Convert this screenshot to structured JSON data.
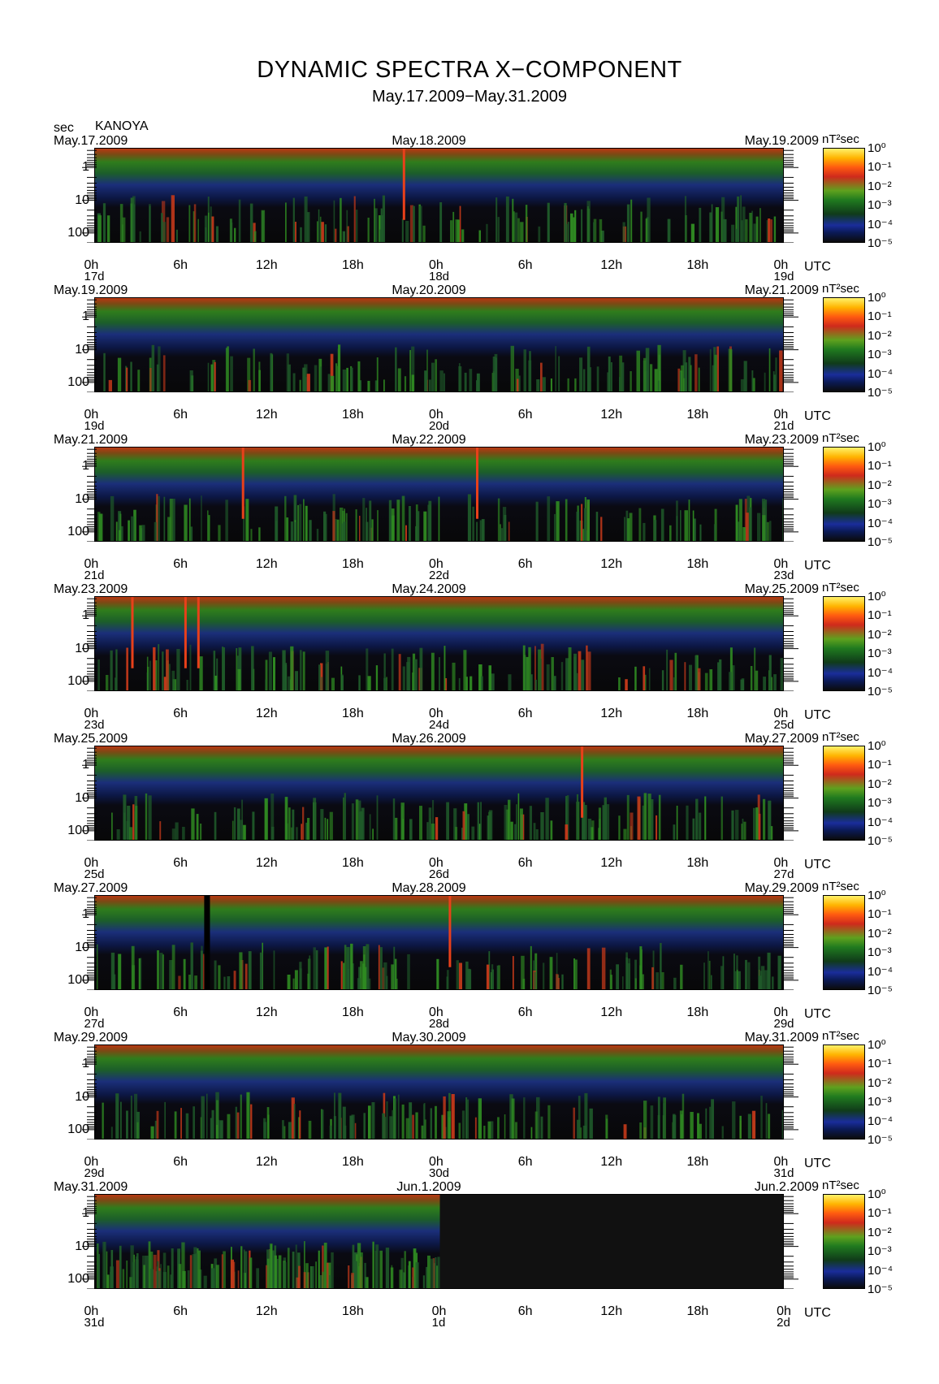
{
  "title": "DYNAMIC SPECTRA X−COMPONENT",
  "subtitle": "May.17.2009−May.31.2009",
  "y_unit_label": "sec",
  "station": "KANOYA",
  "colorbar_unit": "nT²sec",
  "colorbar_labels": [
    "10⁰",
    "10⁻¹",
    "10⁻²",
    "10⁻³",
    "10⁻⁴",
    "10⁻⁵"
  ],
  "y_tick_labels": [
    "1",
    "10",
    "100"
  ],
  "x_tick_labels": [
    "0h",
    "6h",
    "12h",
    "18h",
    "0h",
    "6h",
    "12h",
    "18h",
    "0h"
  ],
  "utc_label": "UTC",
  "chart_data": {
    "type": "heatmap",
    "title": "DYNAMIC SPECTRA X−COMPONENT",
    "subtitle": "May.17.2009−May.31.2009",
    "ylabel": "sec",
    "y_scale": "log",
    "ylim": [
      200,
      0.25
    ],
    "colorbar": {
      "label": "nT²sec",
      "scale": "log",
      "range": [
        1e-05,
        1
      ]
    },
    "panels": [
      {
        "date_left": "May.17.2009",
        "date_mid": "May.18.2009",
        "date_right": "May.19.2009",
        "day_start": "17d",
        "day_mid": "18d",
        "day_end": "19d",
        "events": [
          21.5
        ],
        "data_ends": null
      },
      {
        "date_left": "May.19.2009",
        "date_mid": "May.20.2009",
        "date_right": "May.21.2009",
        "day_start": "19d",
        "day_mid": "20d",
        "day_end": "21d",
        "events": [],
        "data_ends": null
      },
      {
        "date_left": "May.21.2009",
        "date_mid": "May.22.2009",
        "date_right": "May.23.2009",
        "day_start": "21d",
        "day_mid": "22d",
        "day_end": "23d",
        "events": [
          10.3,
          26.6
        ],
        "data_ends": null
      },
      {
        "date_left": "May.23.2009",
        "date_mid": "May.24.2009",
        "date_right": "May.25.2009",
        "day_start": "23d",
        "day_mid": "24d",
        "day_end": "25d",
        "events": [
          2.6,
          6.3,
          7.2
        ],
        "data_ends": null
      },
      {
        "date_left": "May.25.2009",
        "date_mid": "May.26.2009",
        "date_right": "May.27.2009",
        "day_start": "25d",
        "day_mid": "26d",
        "day_end": "27d",
        "events": [
          33.9
        ],
        "data_ends": null
      },
      {
        "date_left": "May.27.2009",
        "date_mid": "May.28.2009",
        "date_right": "May.29.2009",
        "day_start": "27d",
        "day_mid": "28d",
        "day_end": "29d",
        "events": [
          24.7
        ],
        "gap": [
          7.6,
          8.0
        ],
        "data_ends": null
      },
      {
        "date_left": "May.29.2009",
        "date_mid": "May.30.2009",
        "date_right": "May.31.2009",
        "day_start": "29d",
        "day_mid": "30d",
        "day_end": "31d",
        "events": [],
        "data_ends": null
      },
      {
        "date_left": "May.31.2009",
        "date_mid": "Jun.1.2009",
        "date_right": "Jun.2.2009",
        "day_start": "31d",
        "day_mid": "1d",
        "day_end": "2d",
        "events": [],
        "data_ends": 24
      }
    ]
  }
}
